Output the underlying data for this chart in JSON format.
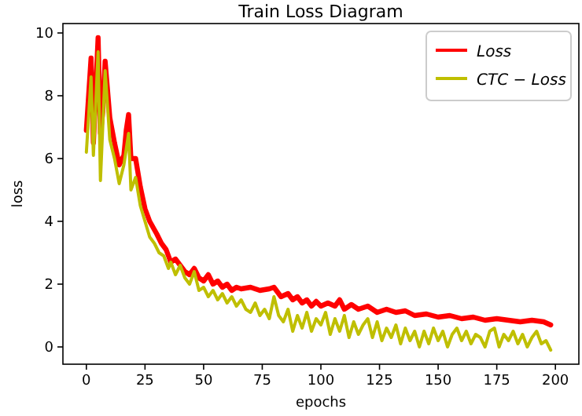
{
  "chart_data": {
    "type": "line",
    "title": "Train Loss Diagram",
    "xlabel": "epochs",
    "ylabel": "loss",
    "xlim": [
      -10,
      210
    ],
    "xticks": [
      0,
      25,
      50,
      75,
      100,
      125,
      150,
      175,
      200
    ],
    "ylim": [
      -0.55,
      10.3
    ],
    "yticks": [
      0,
      2,
      4,
      6,
      8,
      10
    ],
    "grid": false,
    "legend": "top right",
    "line_style": "solid",
    "marker": "none",
    "series": [
      {
        "name": "Loss",
        "color": "#ff0000",
        "x": [
          0,
          2,
          3,
          5,
          6,
          7,
          8,
          10,
          12,
          14,
          16,
          17,
          18,
          19,
          21,
          23,
          25,
          27,
          30,
          32,
          34,
          36,
          38,
          40,
          42,
          44,
          46,
          48,
          50,
          52,
          54,
          56,
          58,
          60,
          62,
          64,
          66,
          70,
          74,
          78,
          80,
          81,
          83,
          86,
          88,
          90,
          92,
          94,
          96,
          98,
          100,
          103,
          106,
          108,
          110,
          113,
          116,
          120,
          124,
          128,
          132,
          136,
          140,
          145,
          150,
          155,
          160,
          165,
          170,
          175,
          180,
          185,
          190,
          195,
          198
        ],
        "values": [
          6.9,
          9.2,
          6.5,
          9.85,
          6.8,
          7.5,
          9.1,
          7.3,
          6.5,
          5.8,
          6.1,
          6.9,
          7.4,
          6.0,
          6.0,
          5.1,
          4.4,
          4.0,
          3.6,
          3.3,
          3.1,
          2.7,
          2.8,
          2.6,
          2.4,
          2.3,
          2.5,
          2.2,
          2.1,
          2.3,
          2.0,
          2.1,
          1.9,
          2.0,
          1.8,
          1.9,
          1.85,
          1.9,
          1.8,
          1.85,
          1.9,
          1.8,
          1.6,
          1.7,
          1.5,
          1.6,
          1.4,
          1.5,
          1.3,
          1.45,
          1.3,
          1.4,
          1.3,
          1.5,
          1.2,
          1.35,
          1.2,
          1.3,
          1.1,
          1.2,
          1.1,
          1.15,
          1.0,
          1.05,
          0.95,
          1.0,
          0.9,
          0.95,
          0.85,
          0.9,
          0.85,
          0.8,
          0.85,
          0.8,
          0.7
        ]
      },
      {
        "name": "CTC − Loss",
        "color": "#bfbf00",
        "x": [
          0,
          2,
          3,
          5,
          6,
          8,
          10,
          12,
          14,
          16,
          18,
          19,
          21,
          23,
          25,
          27,
          29,
          31,
          33,
          35,
          36,
          38,
          40,
          42,
          44,
          46,
          48,
          50,
          52,
          54,
          56,
          58,
          60,
          62,
          64,
          66,
          68,
          70,
          72,
          74,
          76,
          78,
          80,
          82,
          84,
          86,
          88,
          90,
          92,
          94,
          96,
          98,
          100,
          102,
          104,
          106,
          108,
          110,
          112,
          114,
          116,
          118,
          120,
          122,
          124,
          126,
          128,
          130,
          132,
          134,
          136,
          138,
          140,
          142,
          144,
          146,
          148,
          150,
          152,
          154,
          156,
          158,
          160,
          162,
          164,
          166,
          168,
          170,
          172,
          174,
          176,
          178,
          180,
          182,
          184,
          186,
          188,
          190,
          192,
          194,
          196,
          198
        ],
        "values": [
          6.2,
          8.6,
          6.1,
          9.4,
          5.3,
          8.8,
          6.6,
          6.0,
          5.2,
          5.8,
          6.8,
          5.0,
          5.4,
          4.5,
          4.0,
          3.5,
          3.3,
          3.0,
          2.9,
          2.5,
          2.7,
          2.3,
          2.6,
          2.2,
          2.0,
          2.4,
          1.8,
          1.9,
          1.6,
          1.8,
          1.5,
          1.7,
          1.4,
          1.6,
          1.3,
          1.5,
          1.2,
          1.1,
          1.4,
          1.0,
          1.2,
          0.9,
          1.6,
          1.0,
          0.8,
          1.2,
          0.5,
          1.0,
          0.6,
          1.1,
          0.5,
          0.9,
          0.7,
          1.1,
          0.4,
          0.9,
          0.5,
          1.0,
          0.3,
          0.8,
          0.4,
          0.7,
          0.9,
          0.3,
          0.8,
          0.2,
          0.6,
          0.3,
          0.7,
          0.1,
          0.6,
          0.2,
          0.5,
          0.0,
          0.5,
          0.1,
          0.6,
          0.2,
          0.5,
          0.0,
          0.4,
          0.6,
          0.2,
          0.5,
          0.1,
          0.4,
          0.3,
          0.0,
          0.5,
          0.6,
          0.0,
          0.4,
          0.2,
          0.5,
          0.1,
          0.4,
          0.0,
          0.3,
          0.5,
          0.1,
          0.2,
          -0.1
        ]
      }
    ]
  }
}
